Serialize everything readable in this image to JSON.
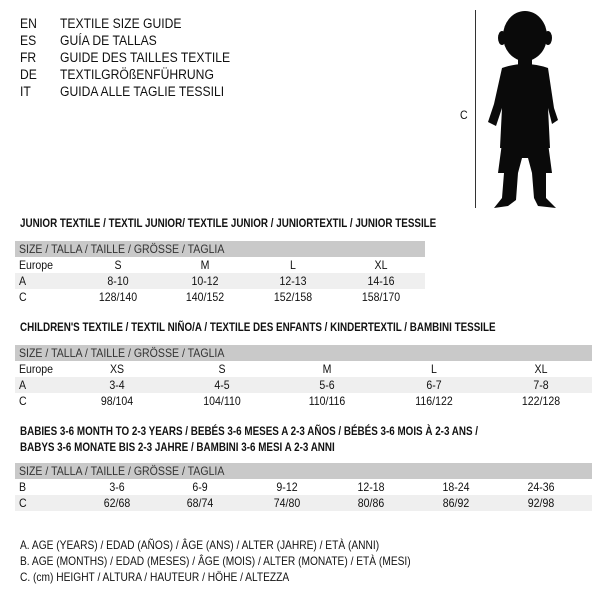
{
  "languages": [
    {
      "code": "EN",
      "title": "TEXTILE SIZE GUIDE"
    },
    {
      "code": "ES",
      "title": "GUÍA DE TALLAS"
    },
    {
      "code": "FR",
      "title": "GUIDE DES TAILLES TEXTILE"
    },
    {
      "code": "DE",
      "title": "TEXTILGRÖßENFÜHRUNG"
    },
    {
      "code": "IT",
      "title": "GUIDA ALLE TAGLIE TESSILI"
    }
  ],
  "figure": {
    "height_label": "C",
    "icon": "child-silhouette"
  },
  "junior": {
    "title": "JUNIOR TEXTILE / TEXTIL JUNIOR/ TEXTILE JUNIOR / JUNIORTEXTIL / JUNIOR TESSILE",
    "header": "SIZE / TALLA / TAILLE / GRÖSSE / TAGLIA",
    "rows": [
      {
        "label": "Europe",
        "values": [
          "S",
          "M",
          "L",
          "XL"
        ]
      },
      {
        "label": "A",
        "values": [
          "8-10",
          "10-12",
          "12-13",
          "14-16"
        ]
      },
      {
        "label": "C",
        "values": [
          "128/140",
          "140/152",
          "152/158",
          "158/170"
        ]
      }
    ]
  },
  "children": {
    "title": "CHILDREN'S TEXTILE / TEXTIL NIÑO/A / TEXTILE DES ENFANTS / KINDERTEXTIL / BAMBINI TESSILE",
    "header": "SIZE / TALLA / TAILLE / GRÖSSE / TAGLIA",
    "rows": [
      {
        "label": "Europe",
        "values": [
          "XS",
          "S",
          "M",
          "L",
          "XL"
        ]
      },
      {
        "label": "A",
        "values": [
          "3-4",
          "4-5",
          "5-6",
          "6-7",
          "7-8"
        ]
      },
      {
        "label": "C",
        "values": [
          "98/104",
          "104/110",
          "110/116",
          "116/122",
          "122/128"
        ]
      }
    ]
  },
  "babies": {
    "title_line1": "BABIES 3-6 MONTH TO 2-3 YEARS / BEBÉS 3-6 MESES A 2-3 AÑOS / BÉBÉS 3-6 MOIS À 2-3 ANS /",
    "title_line2": "BABYS 3-6 MONATE BIS 2-3 JAHRE / BAMBINI 3-6 MESI A 2-3 ANNI",
    "header": "SIZE / TALLA / TAILLE / GRÖSSE / TAGLIA",
    "rows": [
      {
        "label": "B",
        "values": [
          "3-6",
          "6-9",
          "9-12",
          "12-18",
          "18-24",
          "24-36"
        ]
      },
      {
        "label": "C",
        "values": [
          "62/68",
          "68/74",
          "74/80",
          "80/86",
          "86/92",
          "92/98"
        ]
      }
    ]
  },
  "legend": [
    "A. AGE (YEARS) / EDAD (AÑOS) / ÂGE (ANS) / ALTER (JAHRE) / ETÀ (ANNI)",
    "B. AGE (MONTHS) / EDAD (MESES) / ÂGE (MOIS) / ALTER (MONATE) / ETÀ (MESI)",
    "C. (cm) HEIGHT / ALTURA / HAUTEUR / HÖHE / ALTEZZA"
  ]
}
